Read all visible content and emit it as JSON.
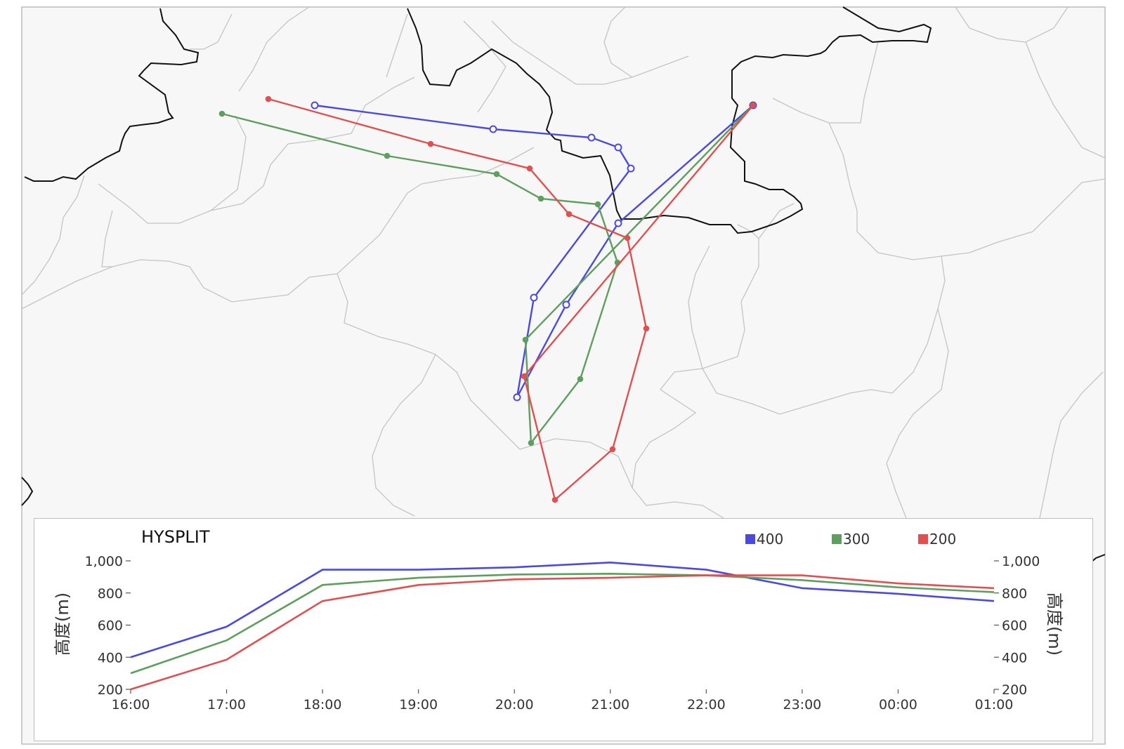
{
  "title": "HYSPLIT",
  "colors": {
    "400": "#4a4ae0",
    "300": "#5e9e5e",
    "200": "#e05050"
  },
  "legend": [
    {
      "label": "400",
      "color": "#4a4ae0"
    },
    {
      "label": "300",
      "color": "#5e9e5e"
    },
    {
      "label": "200",
      "color": "#e05050"
    }
  ],
  "map": {
    "type": "trajectory-map",
    "trajectories": [
      {
        "name": "400",
        "color": "#4a4ae0",
        "points": [
          [
            1072,
            150
          ],
          [
            880,
            318
          ],
          [
            806,
            434
          ],
          [
            736,
            566
          ],
          [
            760,
            424
          ],
          [
            898,
            240
          ],
          [
            880,
            210
          ],
          [
            842,
            196
          ],
          [
            702,
            184
          ],
          [
            448,
            150
          ]
        ]
      },
      {
        "name": "300",
        "color": "#5e9e5e",
        "points": [
          [
            1072,
            150
          ],
          [
            748,
            484
          ],
          [
            756,
            631
          ],
          [
            826,
            540
          ],
          [
            879,
            374
          ],
          [
            851,
            291
          ],
          [
            770,
            283
          ],
          [
            707,
            248
          ],
          [
            551,
            222
          ],
          [
            316,
            162
          ]
        ]
      },
      {
        "name": "200",
        "color": "#e05050",
        "points": [
          [
            1072,
            150
          ],
          [
            746,
            536
          ],
          [
            790,
            712
          ],
          [
            872,
            640
          ],
          [
            920,
            468
          ],
          [
            893,
            339
          ],
          [
            810,
            305
          ],
          [
            754,
            240
          ],
          [
            613,
            205
          ],
          [
            382,
            141
          ]
        ]
      }
    ]
  },
  "chart_data": {
    "type": "line",
    "title": "HYSPLIT",
    "categories": [
      "16:00",
      "17:00",
      "18:00",
      "19:00",
      "20:00",
      "21:00",
      "22:00",
      "23:00",
      "00:00",
      "01:00"
    ],
    "y_ticks": [
      "1,000",
      "800",
      "600",
      "400",
      "200"
    ],
    "y2_ticks": [
      "1,000",
      "800",
      "600",
      "400",
      "200"
    ],
    "ylabel": "高度(m)",
    "y2label": "高度(m)",
    "ylim": [
      200,
      1000
    ],
    "series": [
      {
        "name": "400",
        "color": "#4a4ae0",
        "values": [
          400,
          590,
          945,
          945,
          960,
          990,
          945,
          830,
          795,
          750
        ]
      },
      {
        "name": "300",
        "color": "#5e9e5e",
        "values": [
          300,
          505,
          850,
          895,
          915,
          920,
          910,
          880,
          835,
          805
        ]
      },
      {
        "name": "200",
        "color": "#e05050",
        "values": [
          200,
          385,
          750,
          850,
          885,
          895,
          910,
          910,
          860,
          830
        ]
      }
    ]
  }
}
